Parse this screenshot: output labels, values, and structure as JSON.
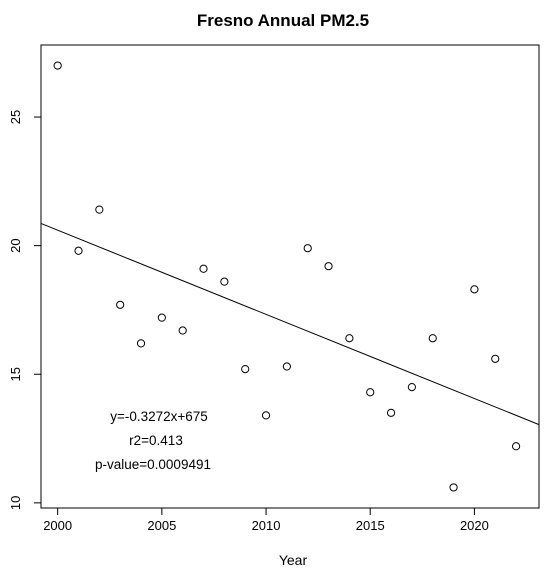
{
  "chart_data": {
    "type": "scatter",
    "title": "Fresno Annual PM2.5",
    "xlabel": "Year",
    "ylabel": "",
    "xlim": [
      1999.2,
      2023.1
    ],
    "ylim": [
      9.8,
      27.8
    ],
    "x_ticks": [
      2000,
      2005,
      2010,
      2015,
      2020
    ],
    "y_ticks": [
      10,
      15,
      20,
      25
    ],
    "grid": false,
    "points": {
      "x": [
        2000,
        2001,
        2002,
        2003,
        2004,
        2005,
        2006,
        2007,
        2008,
        2009,
        2010,
        2011,
        2012,
        2013,
        2014,
        2015,
        2016,
        2017,
        2018,
        2019,
        2020,
        2021,
        2022
      ],
      "y": [
        27.0,
        19.8,
        21.4,
        17.7,
        16.2,
        17.2,
        16.7,
        19.1,
        18.6,
        15.2,
        13.4,
        15.3,
        19.9,
        19.2,
        16.4,
        14.3,
        13.5,
        14.5,
        16.4,
        10.6,
        18.3,
        15.6,
        12.2
      ]
    },
    "regression": {
      "slope": -0.3272,
      "intercept": 675
    },
    "annotations": [
      "y=-0.3272x+675",
      "r2=0.413",
      "p-value=0.0009491"
    ]
  }
}
